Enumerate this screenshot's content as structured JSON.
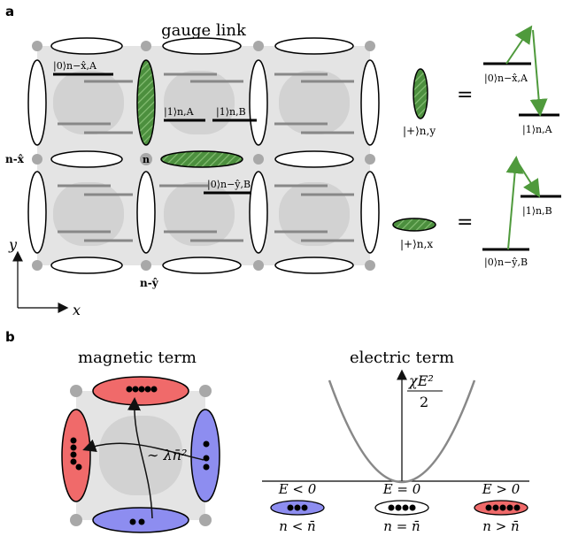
{
  "panel_a": {
    "label": "a",
    "title": "gauge link",
    "site_labels": {
      "n": "n",
      "n_minus_x": "n-x̂",
      "n_minus_y": "n-ŷ"
    },
    "axis_labels": {
      "x": "x",
      "y": "y"
    },
    "lattice_levels": {
      "ket0_A": "|0⟩n−x̂,A",
      "ket1_A": "|1⟩n,A",
      "ket1_B": "|1⟩n,B",
      "ket0_B": "|0⟩n−ŷ,B"
    },
    "equations": {
      "plus_y": "|+⟩n,y",
      "plus_x": "|+⟩n,x",
      "equals": "=",
      "y_ket0": "|0⟩n−x̂,A",
      "y_ket1": "|1⟩n,A",
      "x_ket1": "|1⟩n,B",
      "x_ket0": "|0⟩n−ŷ,B"
    },
    "colors": {
      "green_link": "#5a9a4a",
      "arrow_green": "#4f9a3c"
    }
  },
  "panel_b": {
    "label": "b",
    "magnetic_title": "magnetic term",
    "magnetic_label": "∼ λn̄²",
    "electric_title": "electric term",
    "electric_ylabel_num": "χE²",
    "electric_ylabel_den": "2",
    "cases": [
      {
        "e_label": "E < 0",
        "n_label": "n < n̄",
        "color": "#8d8df0"
      },
      {
        "e_label": "E = 0",
        "n_label": "n = n̄",
        "color": "#ffffff"
      },
      {
        "e_label": "E > 0",
        "n_label": "n > n̄",
        "color": "#f06a6a"
      }
    ],
    "colors": {
      "red": "#f06a6a",
      "blue": "#8d8df0"
    }
  }
}
